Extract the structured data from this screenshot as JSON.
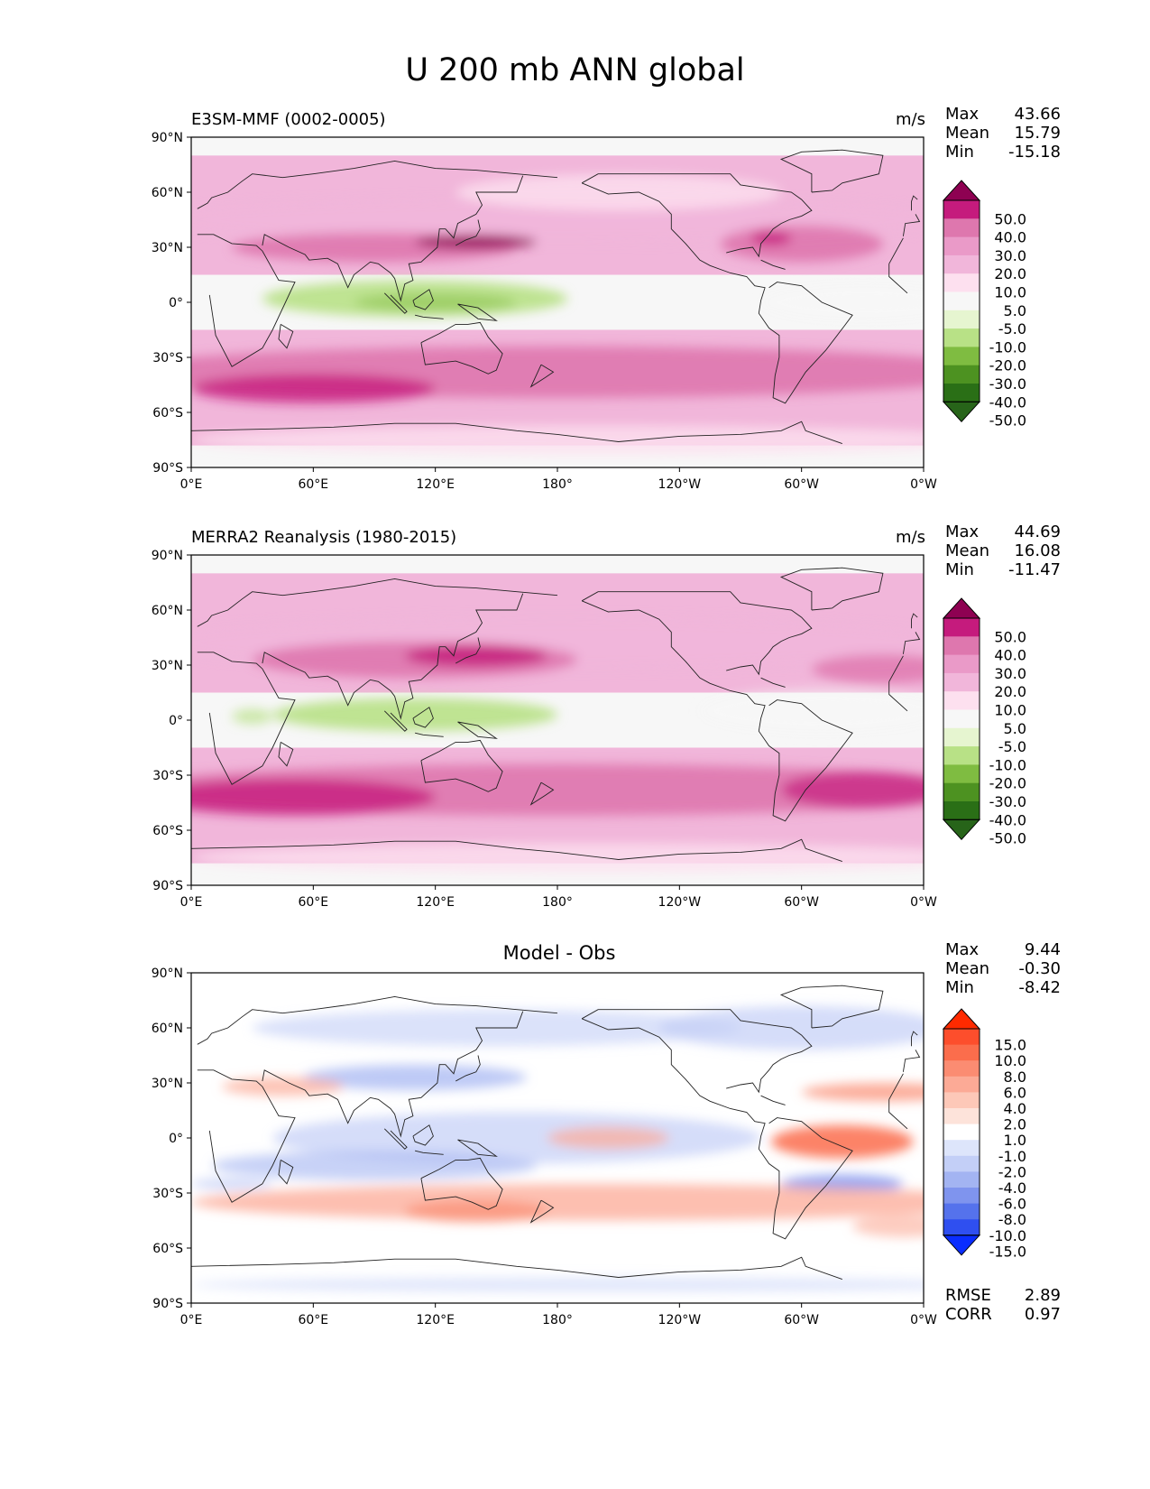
{
  "title": "U 200 mb ANN global",
  "panels": [
    {
      "id": "model",
      "label": "E3SM-MMF (0002-0005)",
      "units": "m/s",
      "stats": [
        {
          "name": "Max",
          "value": "43.66"
        },
        {
          "name": "Mean",
          "value": "15.79"
        },
        {
          "name": "Min",
          "value": "-15.18"
        }
      ],
      "colorbar": {
        "labels": [
          "50.0",
          "40.0",
          "30.0",
          "20.0",
          "10.0",
          "5.0",
          "-5.0",
          "-10.0",
          "-20.0",
          "-30.0",
          "-40.0",
          "-50.0"
        ],
        "colors": [
          "#8e0152",
          "#c51b7d",
          "#de77ae",
          "#ea9ac8",
          "#f1b6da",
          "#fde0ef",
          "#f7f7f7",
          "#e6f5d0",
          "#b8e186",
          "#7fbc41",
          "#4d9221",
          "#2a6f16",
          "#276419"
        ]
      }
    },
    {
      "id": "obs",
      "label": "MERRA2 Reanalysis (1980-2015)",
      "units": "m/s",
      "stats": [
        {
          "name": "Max",
          "value": "44.69"
        },
        {
          "name": "Mean",
          "value": "16.08"
        },
        {
          "name": "Min",
          "value": "-11.47"
        }
      ],
      "colorbar": {
        "labels": [
          "50.0",
          "40.0",
          "30.0",
          "20.0",
          "10.0",
          "5.0",
          "-5.0",
          "-10.0",
          "-20.0",
          "-30.0",
          "-40.0",
          "-50.0"
        ],
        "colors": [
          "#8e0152",
          "#c51b7d",
          "#de77ae",
          "#ea9ac8",
          "#f1b6da",
          "#fde0ef",
          "#f7f7f7",
          "#e6f5d0",
          "#b8e186",
          "#7fbc41",
          "#4d9221",
          "#2a6f16",
          "#276419"
        ]
      }
    },
    {
      "id": "diff",
      "label": "Model - Obs",
      "units": "",
      "stats": [
        {
          "name": "Max",
          "value": "9.44"
        },
        {
          "name": "Mean",
          "value": "-0.30"
        },
        {
          "name": "Min",
          "value": "-8.42"
        }
      ],
      "extra_stats": [
        {
          "name": "RMSE",
          "value": "2.89"
        },
        {
          "name": "CORR",
          "value": "0.97"
        }
      ],
      "colorbar": {
        "labels": [
          "15.0",
          "10.0",
          "8.0",
          "6.0",
          "4.0",
          "2.0",
          "1.0",
          "-1.0",
          "-2.0",
          "-4.0",
          "-6.0",
          "-8.0",
          "-10.0",
          "-15.0"
        ],
        "colors": [
          "#ff2a00",
          "#fd4e2c",
          "#fb6d4c",
          "#fb8c72",
          "#fcaa96",
          "#fdc8b8",
          "#fde3da",
          "#ffffff",
          "#dde5fb",
          "#c3cff7",
          "#a3b4f2",
          "#7f94ee",
          "#5572ec",
          "#2f4ff0",
          "#0a2dff"
        ]
      }
    }
  ],
  "axes": {
    "lat_labels": [
      "90°N",
      "60°N",
      "30°N",
      "0°",
      "30°S",
      "60°S",
      "90°S"
    ],
    "lon_labels": [
      "0°E",
      "60°E",
      "120°E",
      "180°",
      "120°W",
      "60°W",
      "0°W"
    ]
  },
  "chart_data": [
    {
      "type": "contour-map",
      "title": "E3SM-MMF (0002-0005)",
      "variable": "U 200 mb ANN",
      "units": "m/s",
      "contour_levels": [
        -50,
        -40,
        -30,
        -20,
        -10,
        -5,
        5,
        10,
        20,
        30,
        40,
        50
      ],
      "xlim": [
        0,
        360
      ],
      "ylim": [
        -90,
        90
      ],
      "stats": {
        "max": 43.66,
        "mean": 15.79,
        "min": -15.18
      }
    },
    {
      "type": "contour-map",
      "title": "MERRA2 Reanalysis (1980-2015)",
      "variable": "U 200 mb ANN",
      "units": "m/s",
      "contour_levels": [
        -50,
        -40,
        -30,
        -20,
        -10,
        -5,
        5,
        10,
        20,
        30,
        40,
        50
      ],
      "xlim": [
        0,
        360
      ],
      "ylim": [
        -90,
        90
      ],
      "stats": {
        "max": 44.69,
        "mean": 16.08,
        "min": -11.47
      }
    },
    {
      "type": "contour-map",
      "title": "Model - Obs",
      "variable": "U 200 mb ANN difference",
      "contour_levels": [
        -15,
        -10,
        -8,
        -6,
        -4,
        -2,
        -1,
        1,
        2,
        4,
        6,
        8,
        10,
        15
      ],
      "xlim": [
        0,
        360
      ],
      "ylim": [
        -90,
        90
      ],
      "stats": {
        "max": 9.44,
        "mean": -0.3,
        "min": -8.42,
        "rmse": 2.89,
        "corr": 0.97
      }
    }
  ]
}
